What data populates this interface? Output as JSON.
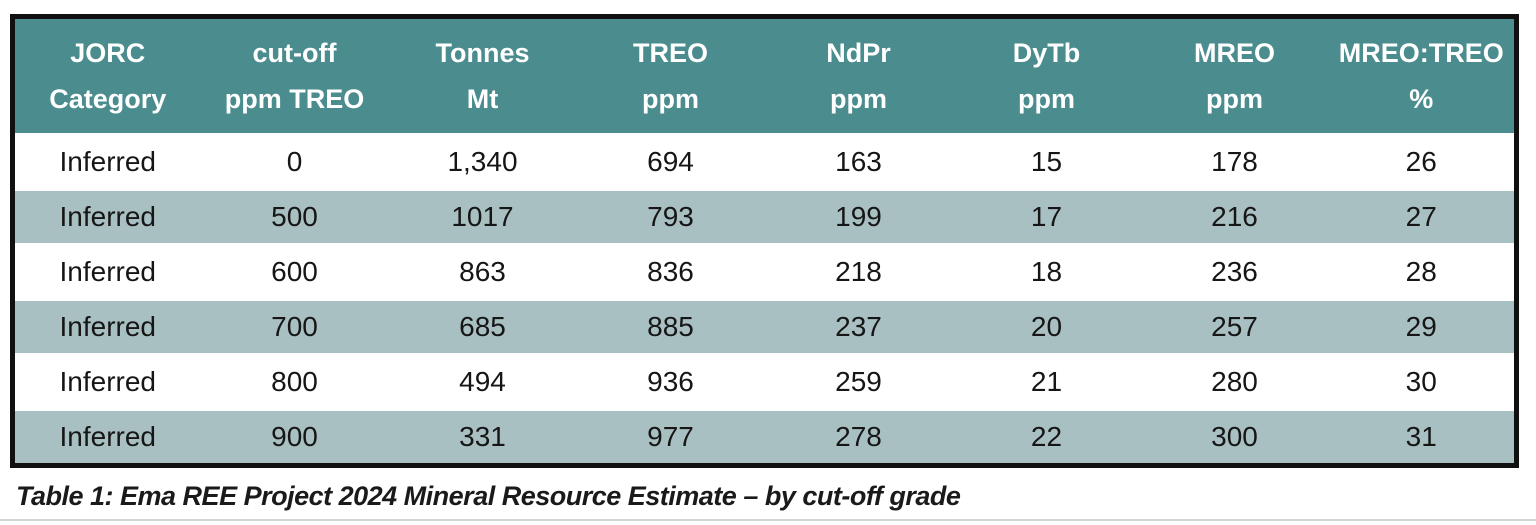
{
  "document": {
    "caption": "Table 1: Ema REE Project 2024 Mineral Resource Estimate – by cut-off grade"
  },
  "colors": {
    "header_bg": "#4b8c8f",
    "header_text": "#ffffff",
    "row_alt_bg": "#a9c0c3",
    "row_bg": "#ffffff",
    "outer_border": "#101010"
  },
  "table": {
    "columns": [
      {
        "line1": "JORC",
        "line2": "Category"
      },
      {
        "line1": "cut-off",
        "line2": "ppm TREO"
      },
      {
        "line1": "Tonnes",
        "line2": "Mt"
      },
      {
        "line1": "TREO",
        "line2": "ppm"
      },
      {
        "line1": "NdPr",
        "line2": "ppm"
      },
      {
        "line1": "DyTb",
        "line2": "ppm"
      },
      {
        "line1": "MREO",
        "line2": "ppm"
      },
      {
        "line1": "MREO:TREO",
        "line2": "%"
      }
    ],
    "rows": [
      [
        "Inferred",
        "0",
        "1,340",
        "694",
        "163",
        "15",
        "178",
        "26"
      ],
      [
        "Inferred",
        "500",
        "1017",
        "793",
        "199",
        "17",
        "216",
        "27"
      ],
      [
        "Inferred",
        "600",
        "863",
        "836",
        "218",
        "18",
        "236",
        "28"
      ],
      [
        "Inferred",
        "700",
        "685",
        "885",
        "237",
        "20",
        "257",
        "29"
      ],
      [
        "Inferred",
        "800",
        "494",
        "936",
        "259",
        "21",
        "280",
        "30"
      ],
      [
        "Inferred",
        "900",
        "331",
        "977",
        "278",
        "22",
        "300",
        "31"
      ]
    ]
  }
}
